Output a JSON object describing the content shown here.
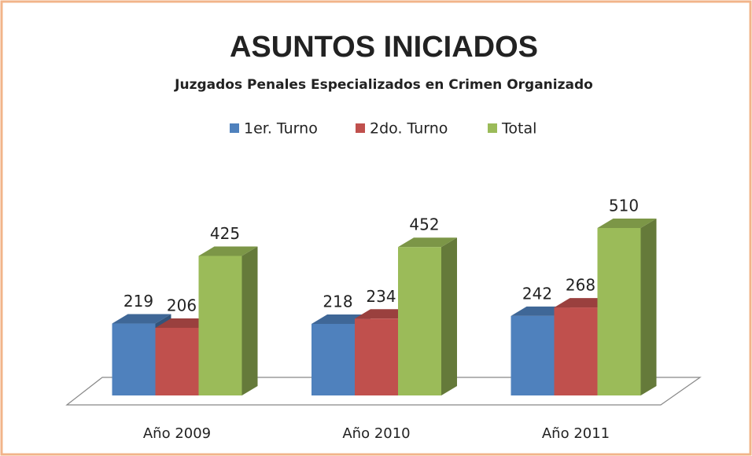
{
  "chart_data": {
    "type": "bar3d",
    "title": "ASUNTOS INICIADOS",
    "subtitle": "Juzgados Penales Especializados en Crimen Organizado",
    "categories": [
      "Año 2009",
      "Año 2010",
      "Año 2011"
    ],
    "series": [
      {
        "name": "1er. Turno",
        "color": "#4f81bd",
        "values": [
          219,
          218,
          242
        ]
      },
      {
        "name": "2do. Turno",
        "color": "#c0504d",
        "values": [
          206,
          234,
          268
        ]
      },
      {
        "name": "Total",
        "color": "#9bbb59",
        "values": [
          425,
          452,
          510
        ]
      }
    ],
    "legend": "top"
  }
}
